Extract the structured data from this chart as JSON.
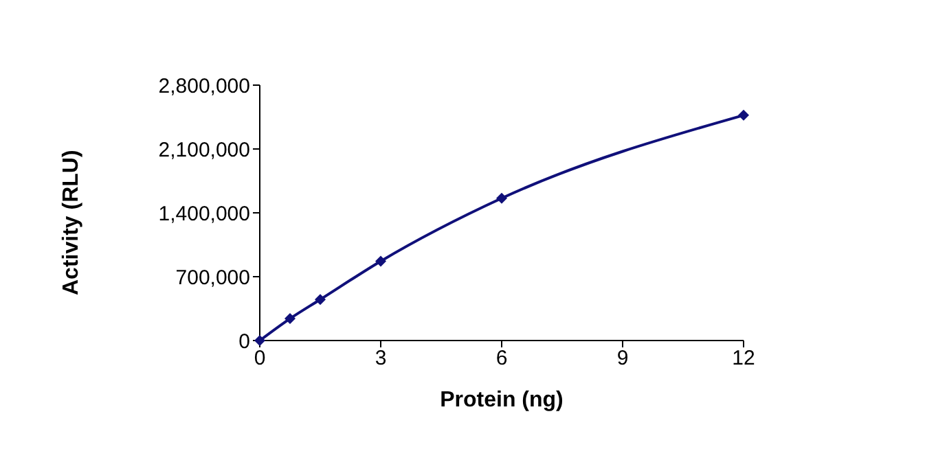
{
  "chart_data": {
    "type": "line",
    "xlabel": "Protein (ng)",
    "ylabel": "Activity (RLU)",
    "x": [
      0,
      0.75,
      1.5,
      3,
      6,
      12
    ],
    "series": [
      {
        "color": "#10107a",
        "values": [
          0,
          240000,
          450000,
          870000,
          1560000,
          2470000
        ]
      }
    ],
    "xlim": [
      0,
      12
    ],
    "xticks": [
      0,
      3,
      6,
      9,
      12
    ],
    "ylim": [
      0,
      2800000
    ],
    "yticks": [
      0,
      {
        "value": 700000,
        "label": "700,000"
      },
      {
        "value": 1400000,
        "label": "1,400,000"
      },
      {
        "value": 2100000,
        "label": "2,100,000"
      },
      {
        "value": 2800000,
        "label": "2,800,000"
      }
    ],
    "grid": false,
    "legend": false,
    "marker": "diamond",
    "line_style": "solid"
  }
}
